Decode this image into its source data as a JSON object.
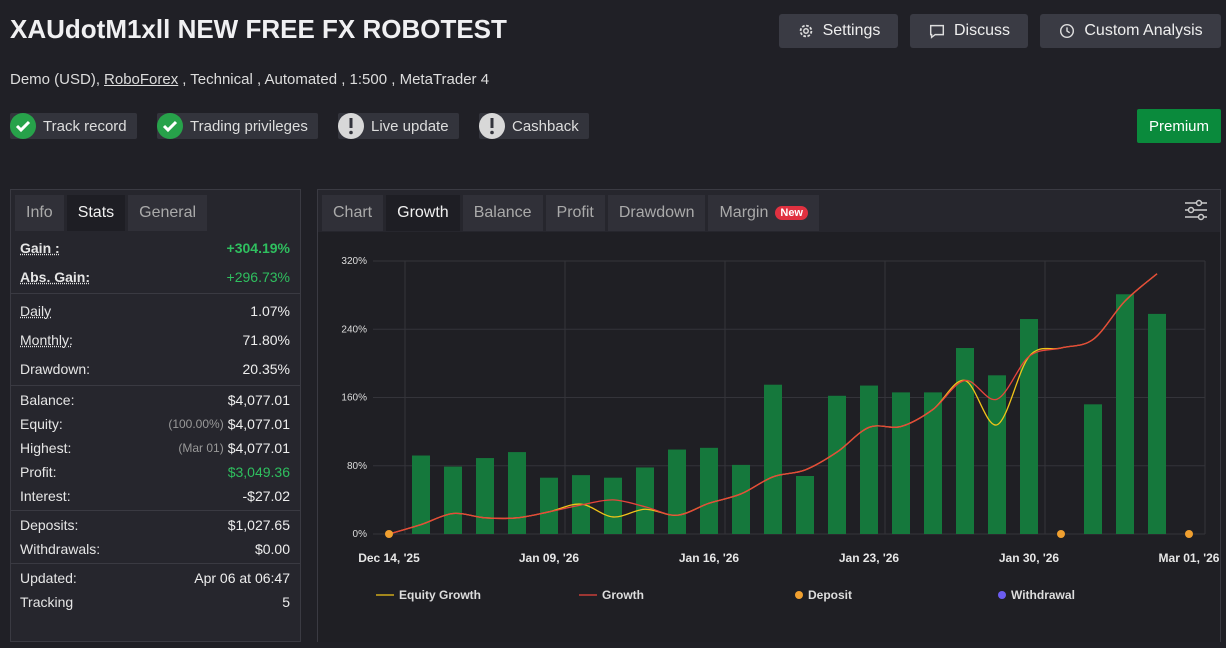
{
  "header": {
    "title": "XAUdotM1xll NEW FREE FX ROBOTEST",
    "buttons": [
      "Settings",
      "Discuss",
      "Custom Analysis"
    ],
    "subtitle": {
      "account": "Demo (USD),",
      "broker": "RoboForex",
      "details": ", Technical , Automated , 1:500 , MetaTrader 4"
    },
    "badges": [
      {
        "label": "Track record",
        "status": "ok"
      },
      {
        "label": "Trading privileges",
        "status": "ok"
      },
      {
        "label": "Live update",
        "status": "warning"
      },
      {
        "label": "Cashback",
        "status": "warning"
      }
    ],
    "premium": "Premium"
  },
  "stats_panel": {
    "tabs": [
      "Info",
      "Stats",
      "General"
    ],
    "active_tab": 1,
    "groups": [
      [
        {
          "label": "Gain :",
          "value": "+304.19%",
          "color": "#2fbf5f"
        },
        {
          "label": "Abs. Gain:",
          "value": "+296.73%",
          "color": "#2fbf5f"
        }
      ],
      [
        {
          "label": "Daily",
          "value": "1.07%"
        },
        {
          "label": "Monthly:",
          "value": "71.80%"
        },
        {
          "label": "Drawdown:",
          "value": "20.35%"
        }
      ],
      [
        {
          "label": "Balance:",
          "value": "$4,077.01"
        },
        {
          "label": "Equity:",
          "note": "(100.00%)",
          "value": "$4,077.01"
        },
        {
          "label": "Highest:",
          "note": "(Mar 01)",
          "value": "$4,077.01"
        },
        {
          "label": "Profit:",
          "value": "$3,049.36",
          "color": "#2fbf5f"
        },
        {
          "label": "Interest:",
          "value": "-$27.02"
        }
      ],
      [
        {
          "label": "Deposits:",
          "value": "$1,027.65"
        },
        {
          "label": "Withdrawals:",
          "value": "$0.00"
        }
      ],
      [
        {
          "label": "Updated:",
          "value": "Apr 06 at 06:47"
        },
        {
          "label": "Tracking",
          "value": "5"
        }
      ]
    ]
  },
  "chart_panel": {
    "tabs": [
      "Chart",
      "Growth",
      "Balance",
      "Profit",
      "Drawdown",
      "Margin"
    ],
    "active_tab": 1,
    "new_badge": "New"
  },
  "chart_data": {
    "type": "line",
    "categories": [
      "Dec 14, '25",
      null,
      null,
      null,
      null,
      "Jan 09, '26",
      null,
      null,
      null,
      null,
      "Jan 16, '26",
      null,
      null,
      null,
      null,
      "Jan 23, '26",
      null,
      null,
      null,
      null,
      "Jan 30, '26",
      null,
      null,
      null,
      null,
      "Mar 01, '26"
    ],
    "ylim": [
      0,
      320
    ],
    "yticks": [
      {
        "value": 0,
        "label": "0%"
      },
      {
        "value": 80,
        "label": "80%"
      },
      {
        "value": 160,
        "label": "160%"
      },
      {
        "value": 240,
        "label": "240%"
      },
      {
        "value": 320,
        "label": "320%"
      }
    ],
    "grid": true,
    "bars": {
      "color": "#15783c",
      "values": [
        null,
        92,
        79,
        89,
        96,
        66,
        69,
        66,
        78,
        99,
        101,
        81,
        175,
        68,
        162,
        174,
        166,
        166,
        218,
        186,
        252,
        null,
        152,
        281,
        258,
        null
      ]
    },
    "series": [
      {
        "name": "Equity Growth",
        "color": "#f0c419",
        "style": "line",
        "values": [
          0,
          11,
          24,
          19,
          19,
          26,
          35,
          20,
          29,
          22,
          36,
          47,
          67,
          75,
          96,
          125,
          126,
          146,
          180,
          128,
          208,
          218,
          228,
          273,
          305,
          null
        ]
      },
      {
        "name": "Growth",
        "color": "#e8453c",
        "style": "line",
        "values": [
          0,
          11,
          24,
          19,
          19,
          26,
          34,
          40,
          32,
          22,
          36,
          47,
          67,
          75,
          96,
          125,
          126,
          146,
          180,
          158,
          208,
          218,
          228,
          273,
          305,
          null
        ]
      },
      {
        "name": "Deposit",
        "color": "#f0a030",
        "style": "point",
        "values": [
          0,
          null,
          null,
          null,
          null,
          null,
          null,
          null,
          null,
          null,
          null,
          null,
          null,
          null,
          null,
          null,
          null,
          null,
          null,
          null,
          null,
          0,
          null,
          null,
          null,
          0
        ]
      },
      {
        "name": "Withdrawal",
        "color": "#6b5cf0",
        "style": "point",
        "values": [
          null,
          null,
          null,
          null,
          null,
          null,
          null,
          null,
          null,
          null,
          null,
          null,
          null,
          null,
          null,
          null,
          null,
          null,
          null,
          null,
          null,
          null,
          null,
          null,
          null,
          null
        ]
      }
    ]
  }
}
